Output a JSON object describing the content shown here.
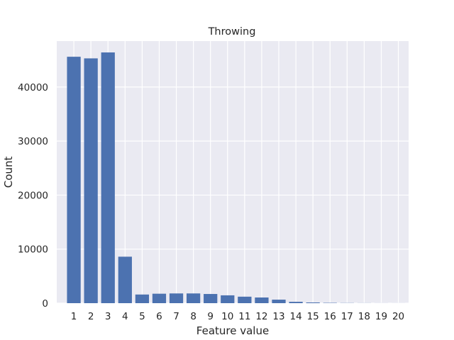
{
  "chart_data": {
    "type": "bar",
    "title": "Throwing",
    "xlabel": "Feature value",
    "ylabel": "Count",
    "categories": [
      "1",
      "2",
      "3",
      "4",
      "5",
      "6",
      "7",
      "8",
      "9",
      "10",
      "11",
      "12",
      "13",
      "14",
      "15",
      "16",
      "17",
      "18",
      "19",
      "20"
    ],
    "values": [
      45600,
      45300,
      46400,
      8600,
      1600,
      1750,
      1800,
      1800,
      1700,
      1450,
      1200,
      1050,
      650,
      250,
      130,
      60,
      30,
      15,
      8,
      5
    ],
    "ylim": [
      0,
      48500
    ],
    "yticks": [
      0,
      10000,
      20000,
      30000,
      40000
    ],
    "grid": true,
    "colors": {
      "bar": "#4c72b0",
      "plot_background": "#eaeaf2",
      "grid": "#ffffff"
    }
  }
}
